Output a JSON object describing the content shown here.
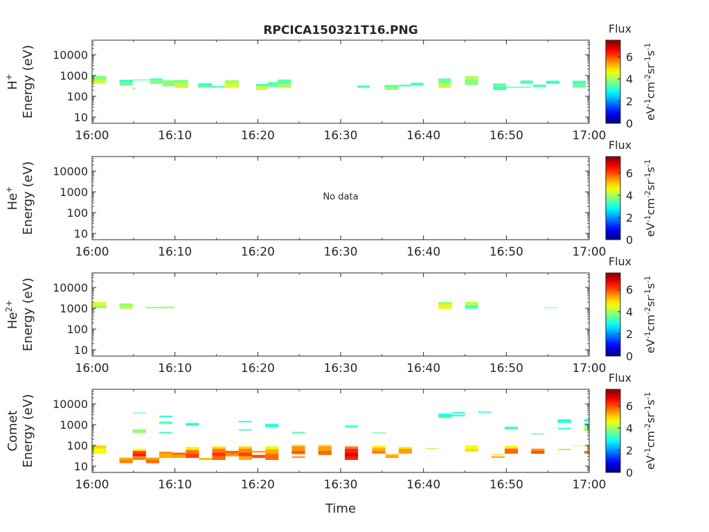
{
  "title": "RPCICA150321T16.PNG",
  "xlabel": "Time",
  "colorbar": {
    "title": "Flux",
    "label_parts": [
      "eV",
      "-1",
      "cm",
      "-2",
      "sr",
      "-1",
      "s",
      "-1"
    ],
    "ticks": [
      0,
      2,
      4,
      6
    ],
    "range": [
      0,
      7.5
    ],
    "colormap": "jet"
  },
  "x_ticks": [
    "16:00",
    "16:10",
    "16:20",
    "16:30",
    "16:40",
    "16:50",
    "17:00"
  ],
  "y_ticks": [
    "10",
    "100",
    "1000",
    "10000"
  ],
  "no_data_text": "No data",
  "chart_data": [
    {
      "type": "heatmap",
      "panel": "H+",
      "ylabel_species": "H",
      "ylabel_sup": "+",
      "ylabel_unit": "Energy (eV)",
      "xlim_minutes": [
        0,
        60
      ],
      "ylim_log10": [
        0.7,
        4.7
      ],
      "has_data": true,
      "cells": [
        [
          0,
          1.7,
          600,
          950,
          3.8
        ],
        [
          0,
          1.7,
          420,
          600,
          4.3
        ],
        [
          3.3,
          4.9,
          500,
          620,
          3.0
        ],
        [
          3.3,
          4.9,
          330,
          500,
          3.6
        ],
        [
          4.9,
          5.2,
          220,
          260,
          3.7
        ],
        [
          4.9,
          7.0,
          580,
          640,
          3.4
        ],
        [
          7.0,
          8.5,
          620,
          720,
          3.2
        ],
        [
          7.0,
          8.5,
          400,
          620,
          3.7
        ],
        [
          8.5,
          10.0,
          300,
          600,
          3.8
        ],
        [
          10.0,
          11.6,
          430,
          620,
          3.8
        ],
        [
          10.0,
          11.6,
          250,
          430,
          4.3
        ],
        [
          12.8,
          14.5,
          340,
          420,
          3.1
        ],
        [
          12.8,
          14.5,
          260,
          340,
          3.6
        ],
        [
          14.5,
          16.0,
          260,
          310,
          3.3
        ],
        [
          16.0,
          17.7,
          400,
          600,
          4.0
        ],
        [
          16.0,
          17.7,
          260,
          400,
          4.4
        ],
        [
          19.8,
          21.2,
          310,
          390,
          3.2
        ],
        [
          19.8,
          21.2,
          200,
          310,
          4.3
        ],
        [
          21.2,
          23.3,
          280,
          480,
          3.5
        ],
        [
          22.4,
          24.0,
          420,
          640,
          3.4
        ],
        [
          22.4,
          24.0,
          260,
          420,
          4.0
        ],
        [
          32.0,
          33.5,
          260,
          330,
          3.2
        ],
        [
          35.3,
          37.0,
          280,
          350,
          3.4
        ],
        [
          35.3,
          37.0,
          200,
          280,
          3.9
        ],
        [
          37.0,
          38.5,
          300,
          360,
          3.2
        ],
        [
          38.5,
          40.0,
          330,
          450,
          3.2
        ],
        [
          41.8,
          43.3,
          430,
          720,
          3.6
        ],
        [
          41.8,
          43.3,
          260,
          430,
          4.2
        ],
        [
          45.0,
          46.6,
          600,
          920,
          4.1
        ],
        [
          45.0,
          46.6,
          350,
          600,
          3.8
        ],
        [
          48.4,
          50.0,
          300,
          420,
          3.6
        ],
        [
          48.4,
          50.0,
          200,
          300,
          3.3
        ],
        [
          50.0,
          53.0,
          260,
          290,
          3.3
        ],
        [
          51.7,
          53.2,
          400,
          580,
          3.4
        ],
        [
          53.2,
          54.8,
          280,
          360,
          3.2
        ],
        [
          54.8,
          56.4,
          400,
          560,
          3.2
        ],
        [
          58.0,
          59.6,
          380,
          560,
          3.3
        ],
        [
          58.0,
          59.6,
          260,
          380,
          3.6
        ]
      ]
    },
    {
      "type": "heatmap",
      "panel": "He+",
      "ylabel_species": "He",
      "ylabel_sup": "+",
      "ylabel_unit": "Energy (eV)",
      "xlim_minutes": [
        0,
        60
      ],
      "ylim_log10": [
        0.7,
        4.7
      ],
      "has_data": false,
      "cells": []
    },
    {
      "type": "heatmap",
      "panel": "He2+",
      "ylabel_species": "He",
      "ylabel_sup": "2+",
      "ylabel_unit": "Energy (eV)",
      "xlim_minutes": [
        0,
        60
      ],
      "ylim_log10": [
        0.7,
        4.7
      ],
      "has_data": true,
      "cells": [
        [
          0,
          1.7,
          1400,
          2000,
          4.4
        ],
        [
          0,
          1.7,
          1000,
          1400,
          4.0
        ],
        [
          3.3,
          4.9,
          1200,
          1700,
          3.9
        ],
        [
          3.3,
          4.9,
          950,
          1200,
          4.2
        ],
        [
          6.5,
          8.3,
          1000,
          1150,
          3.8
        ],
        [
          8.3,
          9.9,
          1000,
          1200,
          4.0
        ],
        [
          41.8,
          43.4,
          1500,
          2000,
          3.9
        ],
        [
          41.8,
          43.4,
          950,
          1500,
          4.8
        ],
        [
          45.0,
          46.6,
          1400,
          2000,
          4.2
        ],
        [
          45.0,
          46.6,
          950,
          1400,
          3.4
        ],
        [
          54.6,
          56.3,
          1020,
          1100,
          3.6
        ]
      ]
    },
    {
      "type": "heatmap",
      "panel": "Comet",
      "ylabel_species": "Comet",
      "ylabel_sup": "",
      "ylabel_unit": "Energy (eV)",
      "xlim_minutes": [
        0,
        60
      ],
      "ylim_log10": [
        0.7,
        4.7
      ],
      "has_data": true,
      "cells": [
        [
          0,
          1.7,
          70,
          100,
          5.0
        ],
        [
          0,
          1.7,
          40,
          70,
          4.6
        ],
        [
          3.3,
          4.9,
          20,
          26,
          5.3
        ],
        [
          3.3,
          4.9,
          14,
          20,
          5.6
        ],
        [
          4.9,
          6.5,
          55,
          70,
          4.7
        ],
        [
          4.9,
          6.5,
          40,
          55,
          6.1
        ],
        [
          4.9,
          6.5,
          30,
          40,
          6.4
        ],
        [
          4.9,
          6.5,
          20,
          30,
          5.6
        ],
        [
          4.9,
          6.5,
          3500,
          3800,
          3.2
        ],
        [
          4.9,
          6.5,
          400,
          600,
          3.9
        ],
        [
          6.5,
          8.1,
          20,
          26,
          5.4
        ],
        [
          6.5,
          8.1,
          14,
          20,
          5.8
        ],
        [
          8.1,
          9.7,
          40,
          50,
          5.5
        ],
        [
          8.1,
          9.7,
          25,
          40,
          5.3
        ],
        [
          8.1,
          9.7,
          2300,
          2700,
          3.1
        ],
        [
          8.1,
          9.7,
          1100,
          1400,
          3.3
        ],
        [
          8.1,
          9.7,
          380,
          450,
          3.4
        ],
        [
          9.7,
          11.3,
          35,
          45,
          5.8
        ],
        [
          9.7,
          11.3,
          25,
          35,
          5.4
        ],
        [
          11.3,
          12.9,
          60,
          85,
          4.8
        ],
        [
          11.3,
          12.9,
          40,
          60,
          5.7
        ],
        [
          11.3,
          12.9,
          25,
          40,
          6.1
        ],
        [
          11.3,
          12.9,
          900,
          1200,
          3.1
        ],
        [
          12.9,
          14.5,
          20,
          25,
          5.2
        ],
        [
          14.5,
          16.1,
          70,
          90,
          4.9
        ],
        [
          14.5,
          16.1,
          45,
          70,
          5.7
        ],
        [
          14.5,
          16.1,
          30,
          45,
          6.2
        ],
        [
          14.5,
          16.1,
          20,
          30,
          5.8
        ],
        [
          16.1,
          17.7,
          40,
          55,
          5.8
        ],
        [
          16.1,
          17.7,
          30,
          40,
          5.5
        ],
        [
          17.7,
          19.3,
          70,
          90,
          5.0
        ],
        [
          17.7,
          19.3,
          45,
          70,
          5.6
        ],
        [
          17.7,
          19.3,
          30,
          45,
          6.1
        ],
        [
          17.7,
          19.3,
          20,
          30,
          5.3
        ],
        [
          17.7,
          19.3,
          1300,
          1500,
          3.0
        ],
        [
          17.7,
          19.3,
          520,
          600,
          3.3
        ],
        [
          19.3,
          20.9,
          45,
          55,
          5.3
        ],
        [
          19.3,
          20.9,
          25,
          35,
          6.0
        ],
        [
          20.9,
          22.5,
          65,
          90,
          4.8
        ],
        [
          20.9,
          22.5,
          40,
          65,
          5.3
        ],
        [
          20.9,
          22.5,
          20,
          40,
          5.8
        ],
        [
          20.9,
          22.5,
          750,
          1100,
          3.1
        ],
        [
          24.1,
          25.7,
          90,
          105,
          5.0
        ],
        [
          24.1,
          25.7,
          55,
          90,
          5.5
        ],
        [
          24.1,
          25.7,
          38,
          55,
          5.9
        ],
        [
          24.1,
          25.7,
          25,
          30,
          5.4
        ],
        [
          24.1,
          25.7,
          380,
          450,
          3.5
        ],
        [
          27.3,
          28.9,
          90,
          105,
          5.0
        ],
        [
          27.3,
          28.9,
          55,
          90,
          5.4
        ],
        [
          27.3,
          28.9,
          35,
          55,
          5.8
        ],
        [
          30.5,
          32.1,
          70,
          90,
          5.6
        ],
        [
          30.5,
          32.1,
          45,
          70,
          6.3
        ],
        [
          30.5,
          32.1,
          28,
          45,
          6.7
        ],
        [
          30.5,
          32.1,
          20,
          28,
          6.3
        ],
        [
          30.5,
          32.1,
          750,
          900,
          3.1
        ],
        [
          33.8,
          35.4,
          75,
          95,
          4.8
        ],
        [
          33.8,
          35.4,
          55,
          75,
          5.3
        ],
        [
          33.8,
          35.4,
          40,
          55,
          5.6
        ],
        [
          33.8,
          35.4,
          380,
          420,
          3.4
        ],
        [
          35.4,
          37.0,
          30,
          38,
          5.2
        ],
        [
          35.4,
          37.0,
          25,
          30,
          5.4
        ],
        [
          37.0,
          38.6,
          70,
          85,
          4.8
        ],
        [
          37.0,
          38.6,
          40,
          70,
          5.4
        ],
        [
          40.2,
          41.8,
          68,
          75,
          4.1
        ],
        [
          41.8,
          43.4,
          2600,
          3400,
          3.0
        ],
        [
          41.8,
          43.4,
          2100,
          2600,
          3.3
        ],
        [
          43.4,
          45.0,
          3400,
          4000,
          3.0
        ],
        [
          43.4,
          45.0,
          2500,
          3000,
          3.2
        ],
        [
          45.0,
          46.6,
          70,
          100,
          4.6
        ],
        [
          45.0,
          46.6,
          50,
          70,
          4.9
        ],
        [
          46.6,
          48.2,
          3800,
          4300,
          3.0
        ],
        [
          48.2,
          49.8,
          35,
          38,
          5.0
        ],
        [
          48.2,
          49.8,
          25,
          30,
          5.3
        ],
        [
          49.8,
          51.4,
          70,
          95,
          4.8
        ],
        [
          49.8,
          51.4,
          40,
          70,
          5.8
        ],
        [
          49.8,
          51.4,
          600,
          800,
          3.2
        ],
        [
          53.0,
          54.6,
          55,
          70,
          5.5
        ],
        [
          53.0,
          54.6,
          40,
          55,
          6.0
        ],
        [
          53.0,
          54.6,
          340,
          380,
          3.5
        ],
        [
          56.2,
          57.8,
          60,
          68,
          5.0
        ],
        [
          56.2,
          57.8,
          1200,
          1800,
          3.1
        ],
        [
          56.2,
          57.8,
          600,
          700,
          3.2
        ],
        [
          57.8,
          59.4,
          95,
          102,
          4.6
        ],
        [
          59.4,
          61.0,
          90,
          100,
          4.5
        ],
        [
          59.4,
          61.0,
          40,
          55,
          5.7
        ],
        [
          59.4,
          61.0,
          1400,
          1800,
          3.1
        ],
        [
          59.4,
          61.0,
          850,
          1200,
          3.4
        ],
        [
          59.4,
          61.0,
          500,
          800,
          3.9
        ]
      ]
    }
  ]
}
